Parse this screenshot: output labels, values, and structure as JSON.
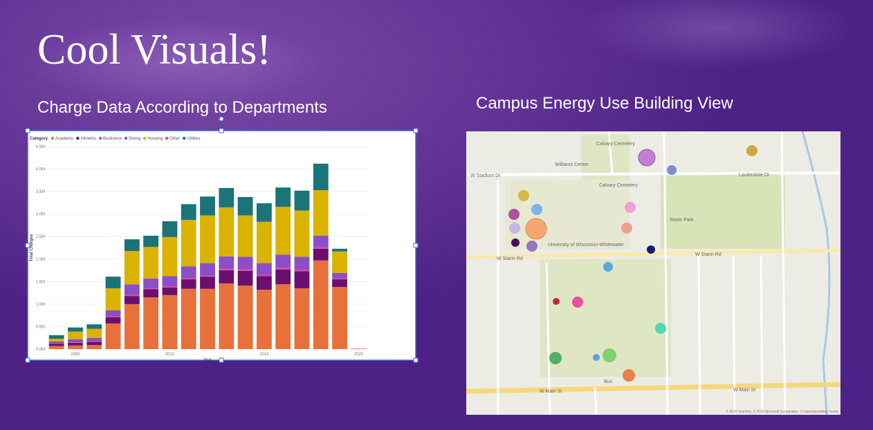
{
  "slide": {
    "title": "Cool Visuals!",
    "left_heading": "Charge Data According to Departments",
    "right_heading": "Campus Energy Use Building View"
  },
  "chart_data": {
    "type": "stacked_bar",
    "legend_title": "Category",
    "x_label": "Year",
    "y_label": "Total Charges",
    "x": [
      2004,
      2005,
      2006,
      2007,
      2008,
      2009,
      2010,
      2011,
      2012,
      2013,
      2014,
      2015,
      2016,
      2017,
      2018,
      2019,
      2020
    ],
    "xlim": [
      2003.5,
      2020.5
    ],
    "xticks": [
      2005,
      2010,
      2015,
      2020
    ],
    "ylim": [
      0,
      4500000
    ],
    "yticks": [
      {
        "value": 0,
        "label": "0.0M"
      },
      {
        "value": 500000,
        "label": "0.5M"
      },
      {
        "value": 1000000,
        "label": "1.0M"
      },
      {
        "value": 1500000,
        "label": "1.5M"
      },
      {
        "value": 2000000,
        "label": "2.0M"
      },
      {
        "value": 2500000,
        "label": "2.5M"
      },
      {
        "value": 3000000,
        "label": "3.0M"
      },
      {
        "value": 3500000,
        "label": "3.5M"
      },
      {
        "value": 4000000,
        "label": "4.0M"
      },
      {
        "value": 4500000,
        "label": "4.5M"
      }
    ],
    "grid": true,
    "series": [
      {
        "name": "Academic",
        "color": "#e8703a",
        "values": [
          70000,
          80000,
          90000,
          570000,
          1000000,
          1150000,
          1200000,
          1340000,
          1340000,
          1460000,
          1410000,
          1320000,
          1440000,
          1350000,
          1970000,
          1380000,
          0
        ]
      },
      {
        "name": "Athletics",
        "color": "#6b0f6e",
        "values": [
          50000,
          60000,
          70000,
          140000,
          180000,
          180000,
          170000,
          210000,
          270000,
          290000,
          330000,
          300000,
          330000,
          380000,
          260000,
          170000,
          0
        ]
      },
      {
        "name": "Bookstore",
        "color": "#e8449a",
        "values": [
          10000,
          10000,
          10000,
          20000,
          20000,
          20000,
          20000,
          20000,
          20000,
          30000,
          30000,
          30000,
          30000,
          30000,
          30000,
          20000,
          0
        ]
      },
      {
        "name": "Dining",
        "color": "#8a4fc9",
        "values": [
          40000,
          70000,
          80000,
          130000,
          240000,
          220000,
          230000,
          270000,
          280000,
          280000,
          280000,
          260000,
          300000,
          290000,
          260000,
          120000,
          0
        ]
      },
      {
        "name": "Housing",
        "color": "#d9b300",
        "values": [
          60000,
          170000,
          200000,
          490000,
          740000,
          700000,
          870000,
          1030000,
          1060000,
          1090000,
          920000,
          920000,
          1060000,
          1030000,
          1010000,
          480000,
          0
        ]
      },
      {
        "name": "Other",
        "color": "#e84a4a",
        "values": [
          0,
          0,
          0,
          0,
          0,
          0,
          0,
          0,
          0,
          0,
          0,
          0,
          0,
          0,
          0,
          0,
          10000
        ]
      },
      {
        "name": "Utilities",
        "color": "#1b7478",
        "values": [
          80000,
          90000,
          100000,
          260000,
          260000,
          250000,
          350000,
          350000,
          420000,
          430000,
          410000,
          410000,
          430000,
          440000,
          590000,
          60000,
          0
        ]
      }
    ]
  },
  "map": {
    "labels": [
      "Williams Center",
      "Calvary Cemetery",
      "Calvary Cemetery",
      "Starin Park",
      "University of Wisconsin-Whitewater",
      "W Starin Rd",
      "W Starin Rd",
      "W Main St",
      "W Main St",
      "Lauderdale Dr",
      "W Stadium Dr",
      "Bus"
    ],
    "credit": "© 2020 TomTom, © 2020 Microsoft Corporation, © OpenStreetMap  Terms"
  }
}
